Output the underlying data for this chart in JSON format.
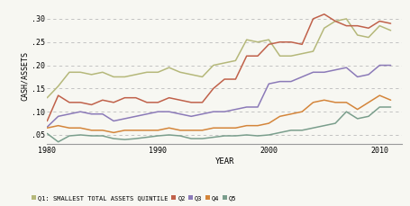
{
  "xlabel": "YEAR",
  "ylabel": "CASH/ASSETS",
  "xlim": [
    1980,
    2012
  ],
  "ylim": [
    0.03,
    0.325
  ],
  "yticks": [
    0.05,
    0.1,
    0.15,
    0.2,
    0.25,
    0.3
  ],
  "ytick_labels": [
    ".05",
    ".10",
    ".15",
    ".20",
    ".25",
    ".30"
  ],
  "xticks": [
    1980,
    1990,
    2000,
    2010
  ],
  "background_color": "#f7f7f2",
  "plot_bg_color": "#f7f7f2",
  "grid_color": "#bbbbbb",
  "series": {
    "Q1": {
      "color": "#b5b87a",
      "label": "Q1: SMALLEST TOTAL ASSETS QUINTILE",
      "years": [
        1980,
        1981,
        1982,
        1983,
        1984,
        1985,
        1986,
        1987,
        1988,
        1989,
        1990,
        1991,
        1992,
        1993,
        1994,
        1995,
        1996,
        1997,
        1998,
        1999,
        2000,
        2001,
        2002,
        2003,
        2004,
        2005,
        2006,
        2007,
        2008,
        2009,
        2010,
        2011
      ],
      "values": [
        0.13,
        0.155,
        0.185,
        0.185,
        0.18,
        0.185,
        0.175,
        0.175,
        0.18,
        0.185,
        0.185,
        0.195,
        0.185,
        0.18,
        0.175,
        0.2,
        0.205,
        0.21,
        0.255,
        0.25,
        0.255,
        0.22,
        0.22,
        0.225,
        0.23,
        0.28,
        0.295,
        0.3,
        0.265,
        0.26,
        0.285,
        0.275
      ]
    },
    "Q2": {
      "color": "#c0614a",
      "label": "Q2",
      "years": [
        1980,
        1981,
        1982,
        1983,
        1984,
        1985,
        1986,
        1987,
        1988,
        1989,
        1990,
        1991,
        1992,
        1993,
        1994,
        1995,
        1996,
        1997,
        1998,
        1999,
        2000,
        2001,
        2002,
        2003,
        2004,
        2005,
        2006,
        2007,
        2008,
        2009,
        2010,
        2011
      ],
      "values": [
        0.08,
        0.135,
        0.12,
        0.12,
        0.115,
        0.125,
        0.12,
        0.13,
        0.13,
        0.12,
        0.12,
        0.13,
        0.125,
        0.12,
        0.12,
        0.15,
        0.17,
        0.17,
        0.22,
        0.22,
        0.245,
        0.25,
        0.25,
        0.245,
        0.3,
        0.31,
        0.295,
        0.285,
        0.285,
        0.28,
        0.295,
        0.29
      ]
    },
    "Q3": {
      "color": "#8b7ab8",
      "label": "Q3",
      "years": [
        1980,
        1981,
        1982,
        1983,
        1984,
        1985,
        1986,
        1987,
        1988,
        1989,
        1990,
        1991,
        1992,
        1993,
        1994,
        1995,
        1996,
        1997,
        1998,
        1999,
        2000,
        2001,
        2002,
        2003,
        2004,
        2005,
        2006,
        2007,
        2008,
        2009,
        2010,
        2011
      ],
      "values": [
        0.067,
        0.09,
        0.095,
        0.1,
        0.095,
        0.095,
        0.08,
        0.085,
        0.09,
        0.095,
        0.1,
        0.1,
        0.095,
        0.09,
        0.095,
        0.1,
        0.1,
        0.105,
        0.11,
        0.11,
        0.16,
        0.165,
        0.165,
        0.175,
        0.185,
        0.185,
        0.19,
        0.195,
        0.175,
        0.18,
        0.2,
        0.2
      ]
    },
    "Q4": {
      "color": "#d4853a",
      "label": "Q4",
      "years": [
        1980,
        1981,
        1982,
        1983,
        1984,
        1985,
        1986,
        1987,
        1988,
        1989,
        1990,
        1991,
        1992,
        1993,
        1994,
        1995,
        1996,
        1997,
        1998,
        1999,
        2000,
        2001,
        2002,
        2003,
        2004,
        2005,
        2006,
        2007,
        2008,
        2009,
        2010,
        2011
      ],
      "values": [
        0.065,
        0.07,
        0.065,
        0.065,
        0.06,
        0.06,
        0.055,
        0.06,
        0.06,
        0.06,
        0.06,
        0.065,
        0.06,
        0.06,
        0.06,
        0.065,
        0.065,
        0.065,
        0.07,
        0.07,
        0.075,
        0.09,
        0.095,
        0.1,
        0.12,
        0.125,
        0.12,
        0.12,
        0.105,
        0.12,
        0.135,
        0.125
      ]
    },
    "Q5": {
      "color": "#7a9e8c",
      "label": "Q5",
      "years": [
        1980,
        1981,
        1982,
        1983,
        1984,
        1985,
        1986,
        1987,
        1988,
        1989,
        1990,
        1991,
        1992,
        1993,
        1994,
        1995,
        1996,
        1997,
        1998,
        1999,
        2000,
        2001,
        2002,
        2003,
        2004,
        2005,
        2006,
        2007,
        2008,
        2009,
        2010,
        2011
      ],
      "values": [
        0.053,
        0.035,
        0.048,
        0.05,
        0.048,
        0.048,
        0.042,
        0.04,
        0.042,
        0.045,
        0.048,
        0.05,
        0.048,
        0.042,
        0.042,
        0.045,
        0.048,
        0.048,
        0.05,
        0.048,
        0.05,
        0.055,
        0.06,
        0.06,
        0.065,
        0.07,
        0.075,
        0.1,
        0.085,
        0.09,
        0.11,
        0.11
      ]
    }
  }
}
